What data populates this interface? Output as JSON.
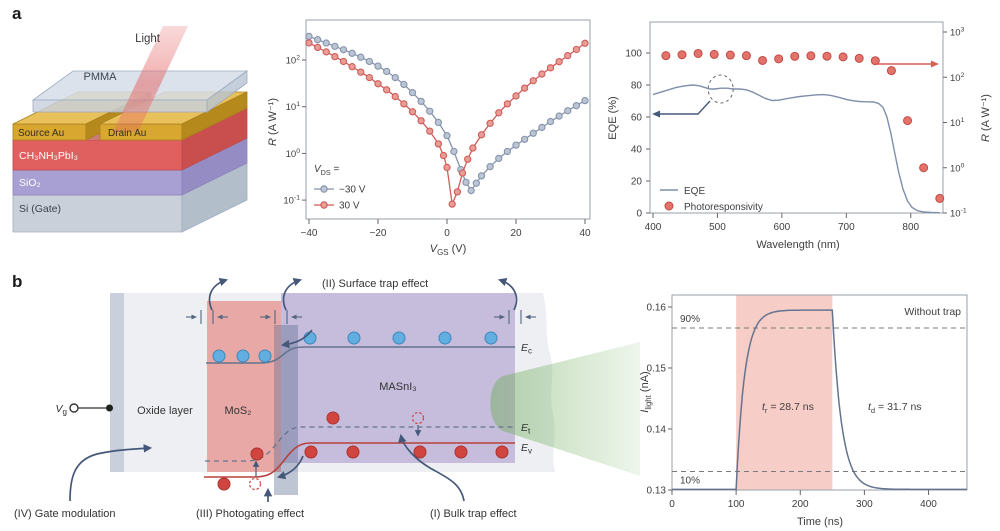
{
  "panel_labels": {
    "a": "a",
    "b": "b"
  },
  "device": {
    "light": "Light",
    "pmma": "PMMA",
    "source": "Source Au",
    "drain": "Drain Au",
    "perovskite": "CH₃NH₃PbI₃",
    "sio2": "SiO₂",
    "si": "Si (Gate)"
  },
  "band_diagram": {
    "labels": {
      "surface_trap": "(II) Surface trap effect",
      "bulk_trap": "(I) Bulk trap effect",
      "photogating": "(III) Photogating effect",
      "gate_modulation": "(IV) Gate modulation",
      "oxide": "Oxide layer",
      "mos2": "MoS₂",
      "masni3": "MASnI₃",
      "vg_sym": "V",
      "vg_sub": "g",
      "ec_sym": "E",
      "ec_sub": "c",
      "et_sym": "E",
      "et_sub": "t",
      "ev_sym": "E",
      "ev_sub": "v"
    }
  },
  "chart_data": [
    {
      "type": "line",
      "name": "responsivity-vs-gate-voltage",
      "xlabel_parts": [
        {
          "i": "V"
        },
        {
          "sub": "GS"
        },
        {
          "t": " (V)"
        }
      ],
      "ylabel_parts": [
        {
          "i": "R"
        },
        {
          "t": " (A W⁻¹)"
        }
      ],
      "x_ticks": [
        {
          "v": -40,
          "label": "−40"
        },
        {
          "v": -20,
          "label": "−20"
        },
        {
          "v": 0,
          "label": "0"
        },
        {
          "v": 20,
          "label": "20"
        },
        {
          "v": 40,
          "label": "40"
        }
      ],
      "y_tick_exponents": [
        2,
        1,
        0,
        -1
      ],
      "xlim": [
        -40,
        40
      ],
      "ylog_lim": [
        -1.4,
        2.86
      ],
      "legend_title_parts": [
        {
          "i": "V"
        },
        {
          "sub": "DS"
        },
        {
          "t": " ="
        }
      ],
      "legend_position": "lower-left",
      "grid": false,
      "series": [
        {
          "name": "−30 V",
          "line_color": "#8593ac",
          "marker_fill": "#bcc5d4",
          "points": [
            [
              -40,
              320
            ],
            [
              -37.5,
              272
            ],
            [
              -35,
              231
            ],
            [
              -32.5,
              196
            ],
            [
              -30,
              166
            ],
            [
              -27.5,
              139
            ],
            [
              -25,
              115
            ],
            [
              -22.5,
              93
            ],
            [
              -20,
              74
            ],
            [
              -17.5,
              57
            ],
            [
              -15,
              42
            ],
            [
              -12.5,
              30
            ],
            [
              -10,
              20
            ],
            [
              -7.5,
              13
            ],
            [
              -5,
              8
            ],
            [
              -2.5,
              4.6
            ],
            [
              0,
              2.4
            ],
            [
              2,
              1.1
            ],
            [
              4,
              0.45
            ],
            [
              5.5,
              0.24
            ],
            [
              7,
              0.16
            ],
            [
              8.5,
              0.23
            ],
            [
              10,
              0.33
            ],
            [
              12.5,
              0.52
            ],
            [
              15,
              0.78
            ],
            [
              17.5,
              1.1
            ],
            [
              20,
              1.5
            ],
            [
              22.5,
              2.0
            ],
            [
              25,
              2.7
            ],
            [
              27.5,
              3.6
            ],
            [
              30,
              4.8
            ],
            [
              32.5,
              6.3
            ],
            [
              35,
              8.2
            ],
            [
              37.5,
              10.5
            ],
            [
              40,
              13.5
            ]
          ]
        },
        {
          "name": "30 V",
          "line_color": "#d05c58",
          "marker_fill": "#e99d97",
          "points": [
            [
              -40,
              232
            ],
            [
              -37.5,
              186
            ],
            [
              -35,
              149
            ],
            [
              -32.5,
              118
            ],
            [
              -30,
              93
            ],
            [
              -27.5,
              72
            ],
            [
              -25,
              55
            ],
            [
              -22.5,
              42
            ],
            [
              -20,
              31
            ],
            [
              -17.5,
              23
            ],
            [
              -15,
              16.5
            ],
            [
              -12.5,
              11.5
            ],
            [
              -10,
              7.8
            ],
            [
              -7.5,
              5.0
            ],
            [
              -5,
              3.0
            ],
            [
              -2.5,
              1.6
            ],
            [
              -1,
              0.9
            ],
            [
              0,
              0.5
            ],
            [
              1.5,
              0.082
            ],
            [
              3,
              0.15
            ],
            [
              4.5,
              0.38
            ],
            [
              6,
              0.75
            ],
            [
              7.5,
              1.3
            ],
            [
              10,
              2.5
            ],
            [
              12.5,
              4.4
            ],
            [
              15,
              7.4
            ],
            [
              17.5,
              11.5
            ],
            [
              20,
              17
            ],
            [
              22.5,
              25
            ],
            [
              25,
              36
            ],
            [
              27.5,
              50
            ],
            [
              30,
              68
            ],
            [
              32.5,
              92
            ],
            [
              35,
              124
            ],
            [
              37.5,
              168
            ],
            [
              40,
              228
            ]
          ]
        }
      ]
    },
    {
      "type": "line+scatter",
      "name": "eqe-and-responsivity-spectrum",
      "xlabel": "Wavelength (nm)",
      "ylabel_left": "EQE (%)",
      "ylabel_right_parts": [
        {
          "i": "R"
        },
        {
          "t": " (A W⁻¹)"
        }
      ],
      "x_ticks": [
        400,
        500,
        600,
        700,
        800
      ],
      "xlim": [
        400,
        850
      ],
      "y_left_ticks": [
        0,
        20,
        40,
        60,
        80,
        100
      ],
      "y_left_lim": [
        0,
        119
      ],
      "y_right_exponents": [
        3,
        2,
        1,
        0,
        -1
      ],
      "legend": [
        {
          "label": "EQE",
          "marker": "line",
          "color": "#7d8faa"
        },
        {
          "label": "Photoresponsivity",
          "marker": "circle",
          "color": "#e4736b"
        }
      ],
      "eqe_color": "#7d8faa",
      "resp_fill": "#e4736b",
      "resp_stroke": "#bf4a44",
      "eqe_series": [
        [
          400,
          74
        ],
        [
          412,
          75.5
        ],
        [
          424,
          77
        ],
        [
          436,
          78.5
        ],
        [
          450,
          79.5
        ],
        [
          462,
          80
        ],
        [
          472,
          79.5
        ],
        [
          480,
          78.5
        ],
        [
          488,
          77.5
        ],
        [
          496,
          77.5
        ],
        [
          505,
          78
        ],
        [
          515,
          78
        ],
        [
          525,
          77.5
        ],
        [
          535,
          77.5
        ],
        [
          545,
          77
        ],
        [
          555,
          75.5
        ],
        [
          565,
          73.5
        ],
        [
          575,
          71.5
        ],
        [
          585,
          70.3
        ],
        [
          595,
          70.5
        ],
        [
          605,
          71.3
        ],
        [
          615,
          72
        ],
        [
          628,
          72.8
        ],
        [
          640,
          73.3
        ],
        [
          652,
          73.8
        ],
        [
          664,
          74
        ],
        [
          676,
          73.5
        ],
        [
          688,
          72.3
        ],
        [
          700,
          71
        ],
        [
          710,
          70.2
        ],
        [
          720,
          69.7
        ],
        [
          732,
          69.5
        ],
        [
          742,
          69.4
        ],
        [
          750,
          68.5
        ],
        [
          757,
          66
        ],
        [
          763,
          60
        ],
        [
          769,
          50
        ],
        [
          775,
          38
        ],
        [
          781,
          26
        ],
        [
          788,
          15
        ],
        [
          795,
          7.5
        ],
        [
          802,
          3.5
        ],
        [
          810,
          1.5
        ],
        [
          820,
          0.6
        ],
        [
          832,
          0.3
        ],
        [
          845,
          0.2
        ]
      ],
      "responsivity_series": [
        [
          420,
          300
        ],
        [
          445,
          315
        ],
        [
          470,
          335
        ],
        [
          495,
          320
        ],
        [
          520,
          310
        ],
        [
          545,
          300
        ],
        [
          570,
          235
        ],
        [
          595,
          255
        ],
        [
          620,
          290
        ],
        [
          645,
          298
        ],
        [
          670,
          292
        ],
        [
          695,
          282
        ],
        [
          720,
          262
        ],
        [
          745,
          232
        ],
        [
          770,
          140
        ],
        [
          795,
          11
        ],
        [
          820,
          1.0
        ],
        [
          845,
          0.21
        ]
      ]
    },
    {
      "type": "line",
      "name": "transient-photoresponse",
      "xlabel": "Time (ns)",
      "ylabel_parts": [
        {
          "i": "I"
        },
        {
          "sub": "light"
        },
        {
          "t": " (nA)"
        }
      ],
      "x_ticks": [
        0,
        100,
        200,
        300,
        400
      ],
      "xlim": [
        0,
        460
      ],
      "y_ticks": [
        0.13,
        0.14,
        0.15,
        0.16
      ],
      "ylim": [
        0.13,
        0.1619
      ],
      "annotations": {
        "rise_parts": [
          {
            "i": "t"
          },
          {
            "sub": "r"
          },
          {
            "t": " = 28.7 ns"
          }
        ],
        "decay_parts": [
          {
            "i": "t"
          },
          {
            "sub": "d"
          },
          {
            "t": " = 31.7 ns"
          }
        ],
        "top_right": "Without trap",
        "p90": "90%",
        "p10": "10%"
      },
      "params": {
        "baseline": 0.1301,
        "amplitude": 0.0294,
        "t_on": 100,
        "t_off": 250,
        "tau_rise": 13.1,
        "tau_decay": 14.4
      },
      "shade": {
        "from": 100,
        "to": 250,
        "color": "#f6cdc7"
      },
      "line_color": "#64748f"
    }
  ]
}
